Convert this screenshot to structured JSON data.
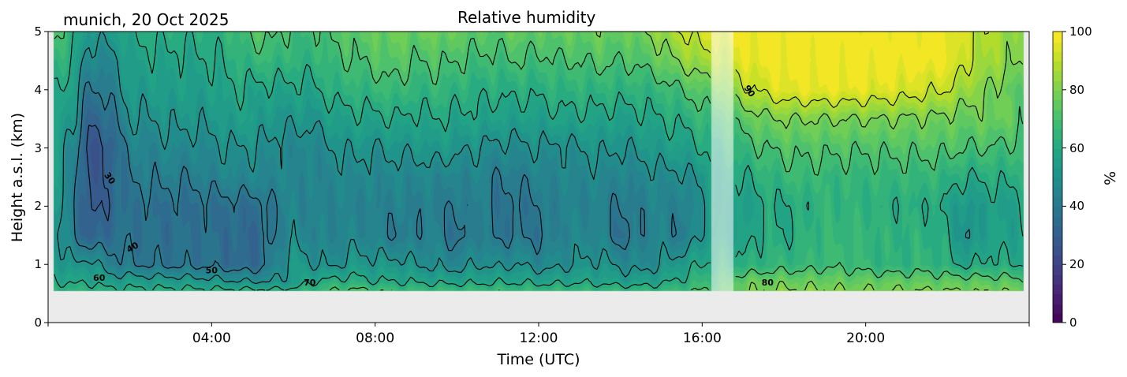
{
  "figure": {
    "location_date": "munich, 20 Oct 2025"
  },
  "chart_data": {
    "type": "heatmap",
    "title": "Relative humidity",
    "subtitle": "munich, 20 Oct 2025",
    "xlabel": "Time (UTC)",
    "ylabel": "Height a.s.l. (km)",
    "colorbar_label": "%",
    "colormap": "viridis",
    "xlim_hours": [
      0,
      24
    ],
    "ylim_km": [
      0,
      5
    ],
    "clim": [
      0,
      100
    ],
    "fill_levels": 30,
    "x_ticks": [
      {
        "value": 4,
        "label": "04:00"
      },
      {
        "value": 8,
        "label": "08:00"
      },
      {
        "value": 12,
        "label": "12:00"
      },
      {
        "value": 16,
        "label": "16:00"
      },
      {
        "value": 20,
        "label": "20:00"
      }
    ],
    "y_ticks": [
      {
        "value": 0,
        "label": "0"
      },
      {
        "value": 1,
        "label": "1"
      },
      {
        "value": 2,
        "label": "2"
      },
      {
        "value": 3,
        "label": "3"
      },
      {
        "value": 4,
        "label": "4"
      },
      {
        "value": 5,
        "label": "5"
      }
    ],
    "colorbar_ticks": [
      {
        "value": 0,
        "label": "0"
      },
      {
        "value": 20,
        "label": "20"
      },
      {
        "value": 40,
        "label": "40"
      },
      {
        "value": 60,
        "label": "60"
      },
      {
        "value": 80,
        "label": "80"
      },
      {
        "value": 100,
        "label": "100"
      }
    ],
    "contour_levels": [
      30,
      40,
      50,
      60,
      70,
      80,
      90
    ],
    "contour_labels": [
      {
        "level": 30,
        "text": "30",
        "time": 1.45,
        "height": 2.45
      },
      {
        "level": 40,
        "text": "40",
        "time": 2.1,
        "height": 1.25
      },
      {
        "level": 50,
        "text": "50",
        "time": 4.0,
        "height": 0.85
      },
      {
        "level": 60,
        "text": "60",
        "time": 1.25,
        "height": 0.72
      },
      {
        "level": 70,
        "text": "70",
        "time": 6.4,
        "height": 0.64
      },
      {
        "level": 80,
        "text": "80",
        "time": 17.6,
        "height": 0.64
      },
      {
        "level": 90,
        "text": "90",
        "time": 17.1,
        "height": 3.95
      }
    ],
    "data_time_range_hours": [
      0.15,
      23.85
    ],
    "data_height_range_km": [
      0.55,
      5.0
    ],
    "missing_data_interval_hours": [
      16.22,
      16.75
    ],
    "grid": {
      "times": [
        0.15,
        0.6,
        1.0,
        1.5,
        2.0,
        2.5,
        3.0,
        3.5,
        4.0,
        4.5,
        5.0,
        5.5,
        6.0,
        6.5,
        7.0,
        7.5,
        8.0,
        8.5,
        9.0,
        9.5,
        10.0,
        10.5,
        11.0,
        11.5,
        12.0,
        12.5,
        13.0,
        13.5,
        14.0,
        14.5,
        15.0,
        15.5,
        16.0,
        16.5,
        17.0,
        17.5,
        18.0,
        18.5,
        19.0,
        19.5,
        20.0,
        20.5,
        21.0,
        21.5,
        22.0,
        22.5,
        23.0,
        23.5,
        23.85
      ],
      "heights": [
        0.55,
        0.7,
        1.0,
        1.5,
        2.0,
        2.5,
        3.0,
        3.5,
        4.0,
        4.5,
        5.0
      ],
      "rh_percent": [
        [
          66,
          64,
          65,
          62,
          62,
          62,
          62,
          62,
          62,
          62,
          62,
          62,
          63,
          66,
          70,
          72,
          70,
          68,
          67,
          67,
          67,
          67,
          67,
          67,
          66,
          66,
          66,
          66,
          66,
          65,
          66,
          68,
          70,
          72,
          78,
          80,
          81,
          81,
          81,
          80,
          80,
          80,
          80,
          80,
          80,
          79,
          79,
          79,
          78
        ],
        [
          61,
          58,
          60,
          55,
          56,
          55,
          55,
          54,
          53,
          51,
          50,
          50,
          54,
          60,
          63,
          63,
          60,
          60,
          59,
          58,
          58,
          58,
          59,
          59,
          58,
          58,
          59,
          58,
          56,
          56,
          58,
          62,
          66,
          70,
          76,
          78,
          77,
          77,
          77,
          76,
          76,
          76,
          76,
          75,
          75,
          75,
          74,
          74,
          72
        ],
        [
          56,
          50,
          54,
          44,
          40,
          39,
          38,
          38,
          38,
          35,
          34,
          42,
          55,
          50,
          48,
          54,
          52,
          53,
          50,
          48,
          46,
          50,
          48,
          50,
          46,
          48,
          50,
          52,
          48,
          46,
          50,
          55,
          60,
          64,
          62,
          64,
          66,
          66,
          68,
          68,
          66,
          64,
          64,
          66,
          62,
          58,
          62,
          60,
          60
        ],
        [
          52,
          42,
          30,
          36,
          38,
          37,
          36,
          37,
          37,
          35,
          33,
          40,
          48,
          44,
          44,
          46,
          44,
          40,
          42,
          44,
          36,
          44,
          38,
          40,
          38,
          44,
          46,
          45,
          36,
          42,
          46,
          40,
          52,
          58,
          56,
          62,
          60,
          64,
          66,
          66,
          66,
          64,
          64,
          64,
          60,
          48,
          58,
          56,
          58
        ],
        [
          54,
          42,
          28,
          32,
          38,
          37,
          37,
          37,
          37,
          37,
          36,
          40,
          46,
          44,
          45,
          44,
          43,
          44,
          43,
          42,
          40,
          44,
          38,
          38,
          40,
          44,
          44,
          44,
          40,
          43,
          46,
          42,
          50,
          58,
          54,
          60,
          60,
          62,
          65,
          65,
          64,
          62,
          62,
          62,
          58,
          52,
          56,
          56,
          58
        ],
        [
          56,
          44,
          27,
          32,
          40,
          42,
          42,
          41,
          44,
          46,
          46,
          46,
          46,
          44,
          46,
          47,
          46,
          46,
          46,
          46,
          44,
          46,
          40,
          42,
          44,
          46,
          46,
          47,
          44,
          46,
          48,
          48,
          52,
          60,
          60,
          64,
          66,
          68,
          66,
          66,
          66,
          66,
          66,
          66,
          64,
          60,
          62,
          62,
          62
        ],
        [
          58,
          46,
          26,
          30,
          44,
          44,
          48,
          46,
          48,
          50,
          50,
          48,
          46,
          46,
          50,
          52,
          50,
          52,
          52,
          54,
          52,
          50,
          48,
          48,
          50,
          48,
          50,
          52,
          50,
          52,
          55,
          56,
          60,
          64,
          66,
          70,
          72,
          72,
          72,
          72,
          71,
          72,
          72,
          72,
          72,
          70,
          70,
          68,
          70
        ],
        [
          60,
          52,
          32,
          36,
          50,
          50,
          52,
          52,
          52,
          56,
          56,
          52,
          52,
          52,
          56,
          58,
          58,
          60,
          58,
          60,
          58,
          58,
          56,
          56,
          56,
          58,
          58,
          58,
          56,
          58,
          60,
          62,
          66,
          70,
          74,
          78,
          80,
          80,
          80,
          80,
          80,
          80,
          79,
          79,
          78,
          76,
          78,
          76,
          72
        ],
        [
          62,
          56,
          38,
          42,
          54,
          54,
          56,
          55,
          56,
          60,
          58,
          58,
          58,
          58,
          64,
          64,
          66,
          68,
          64,
          66,
          64,
          62,
          62,
          62,
          62,
          64,
          64,
          64,
          64,
          64,
          66,
          70,
          74,
          80,
          88,
          92,
          96,
          97,
          97,
          97,
          96,
          95,
          94,
          92,
          90,
          84,
          80,
          76,
          74
        ],
        [
          66,
          60,
          46,
          46,
          56,
          58,
          58,
          58,
          60,
          62,
          66,
          66,
          64,
          64,
          68,
          70,
          72,
          74,
          70,
          72,
          70,
          68,
          68,
          70,
          68,
          70,
          70,
          72,
          70,
          72,
          76,
          82,
          86,
          90,
          96,
          98,
          99,
          99,
          99,
          99,
          99,
          99,
          99,
          99,
          98,
          90,
          86,
          82,
          80
        ],
        [
          72,
          64,
          52,
          54,
          60,
          62,
          62,
          62,
          62,
          66,
          72,
          72,
          68,
          68,
          72,
          74,
          76,
          78,
          76,
          78,
          76,
          74,
          74,
          76,
          74,
          76,
          76,
          78,
          76,
          78,
          84,
          90,
          94,
          96,
          98,
          99,
          99,
          99,
          99,
          99,
          99,
          99,
          99,
          99,
          98,
          92,
          88,
          84,
          80
        ]
      ]
    }
  }
}
